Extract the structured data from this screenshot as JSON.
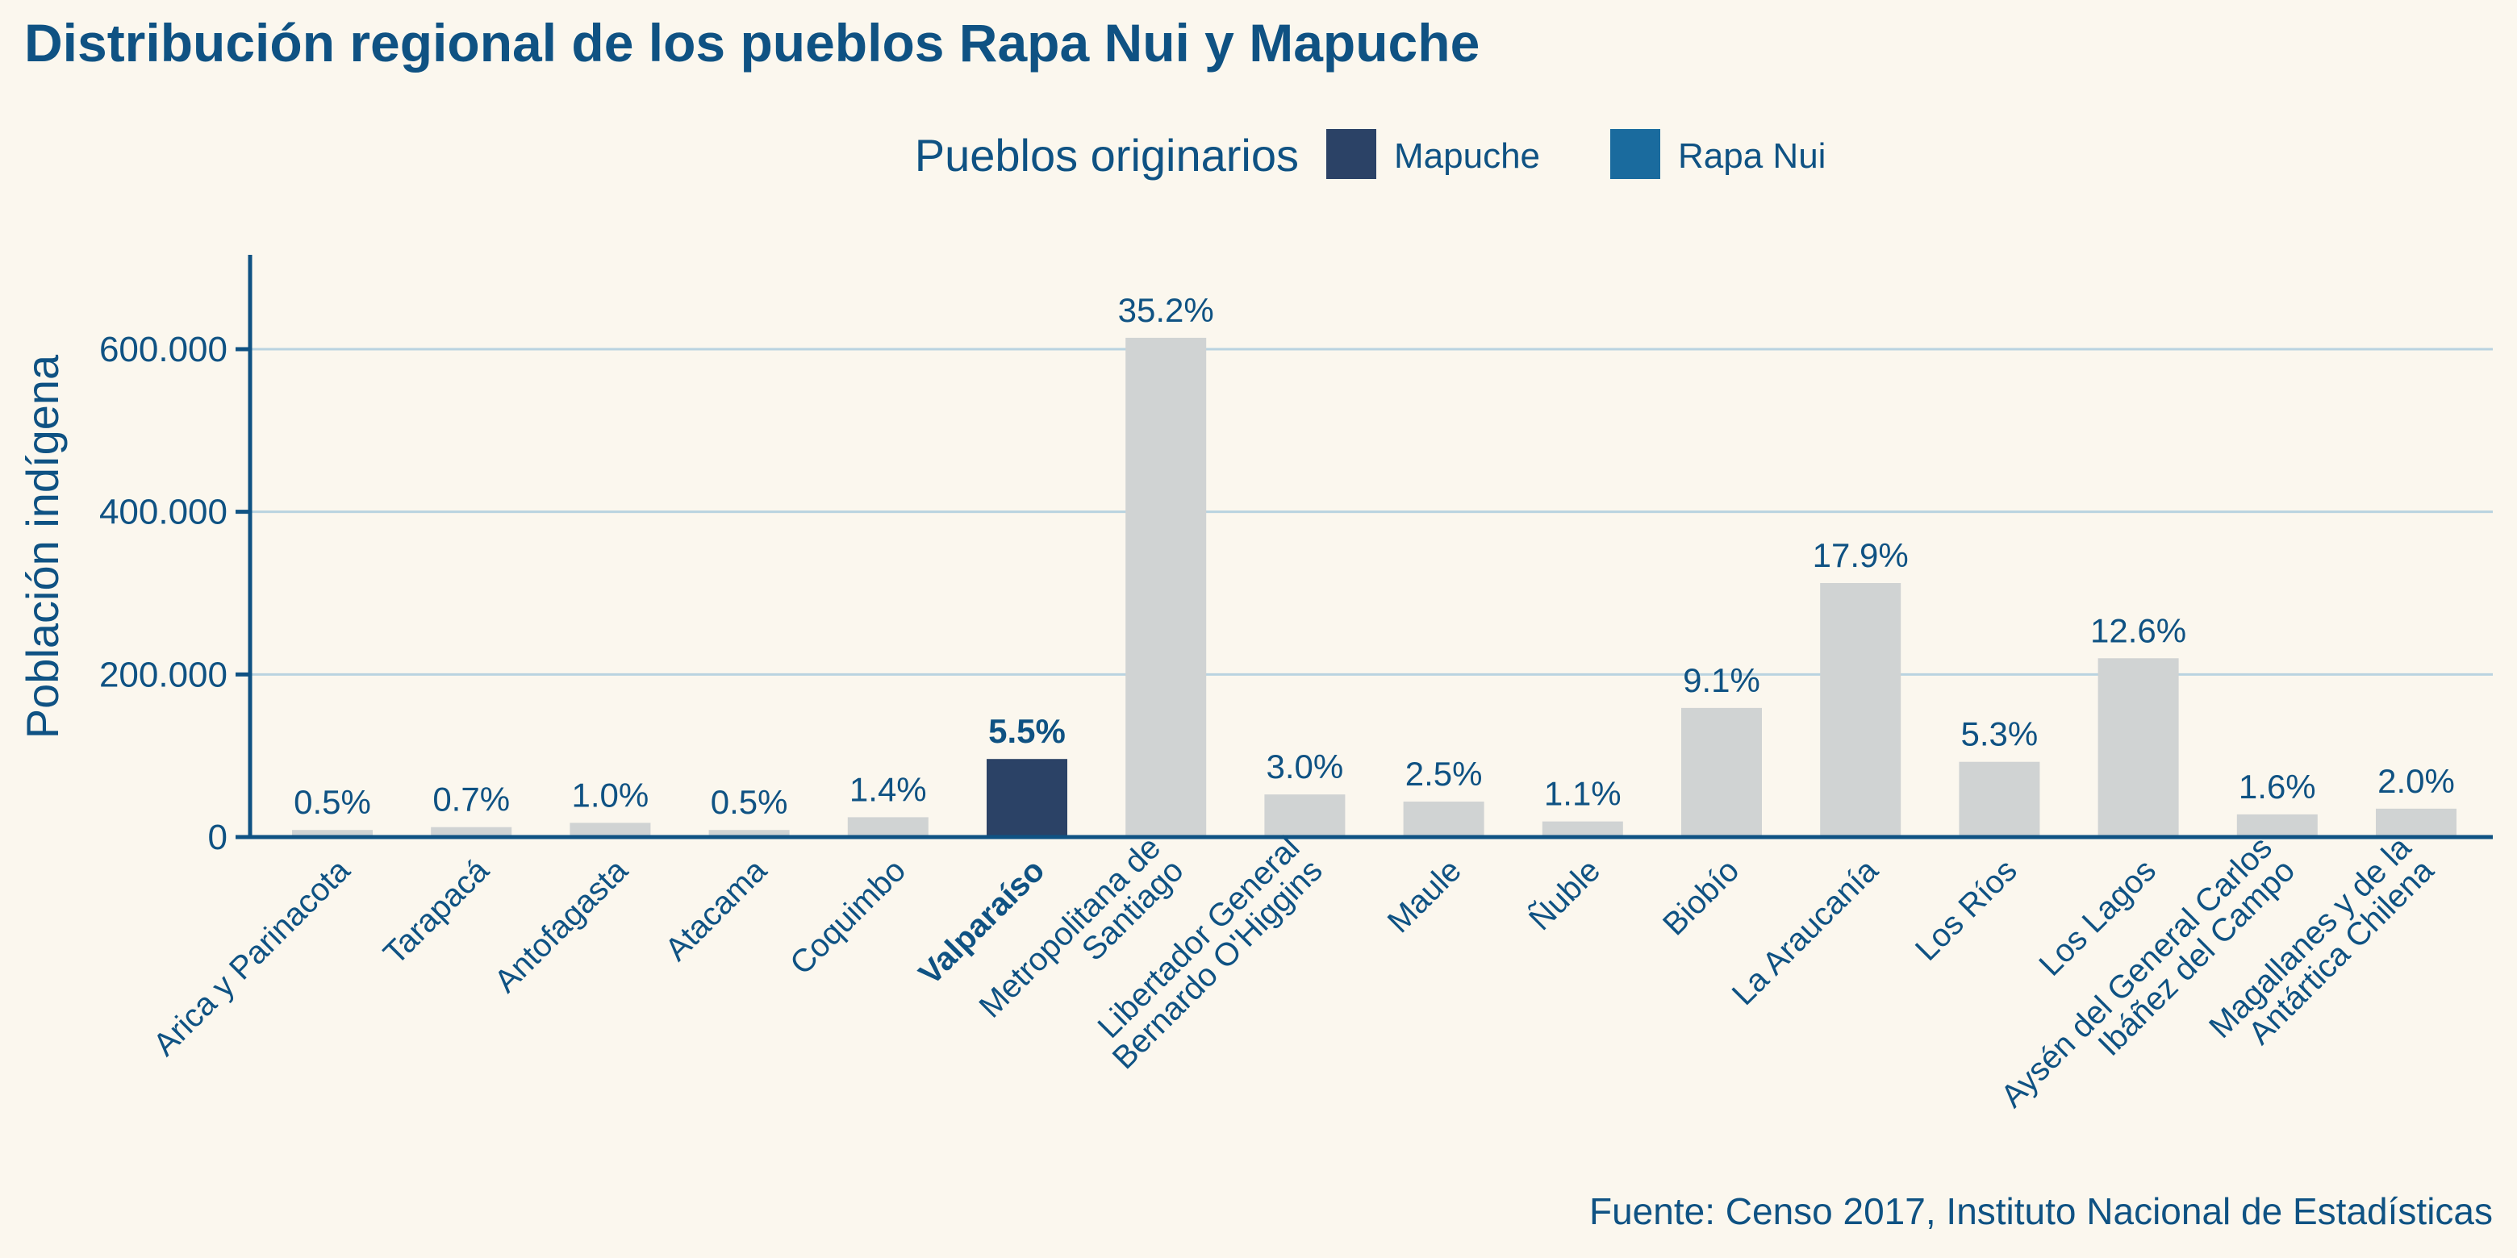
{
  "chart_data": {
    "type": "bar",
    "title": "Distribución regional de los pueblos Rapa Nui y Mapuche",
    "legend": {
      "title": "Pueblos originarios",
      "position": "top-center",
      "entries": [
        {
          "label": "Mapuche",
          "color": "#2b4266"
        },
        {
          "label": "Rapa Nui",
          "color": "#1a6b9e"
        }
      ]
    },
    "xlabel": "",
    "ylabel": "Población indígena",
    "ylim": [
      0,
      715000
    ],
    "yticks": [
      0,
      200000,
      400000,
      600000
    ],
    "ytick_labels": [
      "0",
      "200.000",
      "400.000",
      "600.000"
    ],
    "grid": "horizontal",
    "categories": [
      "Arica y Parinacota",
      "Tarapacá",
      "Antofagasta",
      "Atacama",
      "Coquimbo",
      "Valparaíso",
      "Metropolitana de\nSantiago",
      "Libertador General\nBernardo O'Higgins",
      "Maule",
      "Ñuble",
      "Biobío",
      "La Araucanía",
      "Los Ríos",
      "Los Lagos",
      "Aysén del General Carlos\nIbáñez del Campo",
      "Magallanes y de la\nAntártica Chilena"
    ],
    "values": [
      8700,
      12200,
      17500,
      8700,
      24400,
      96000,
      614000,
      52400,
      43600,
      19200,
      158800,
      312400,
      92500,
      219900,
      27900,
      34900
    ],
    "value_labels": [
      "0.5%",
      "0.7%",
      "1.0%",
      "0.5%",
      "1.4%",
      "5.5%",
      "35.2%",
      "3.0%",
      "2.5%",
      "1.1%",
      "9.1%",
      "17.9%",
      "5.3%",
      "12.6%",
      "1.6%",
      "2.0%"
    ],
    "highlight_index": 5,
    "highlight_color": "#2b4266",
    "bar_color": "#d0d3d3",
    "grid_color": "#b9d3e0",
    "axis_color": "#0f5283",
    "source": "Fuente: Censo 2017, Instituto Nacional de Estadísticas"
  }
}
